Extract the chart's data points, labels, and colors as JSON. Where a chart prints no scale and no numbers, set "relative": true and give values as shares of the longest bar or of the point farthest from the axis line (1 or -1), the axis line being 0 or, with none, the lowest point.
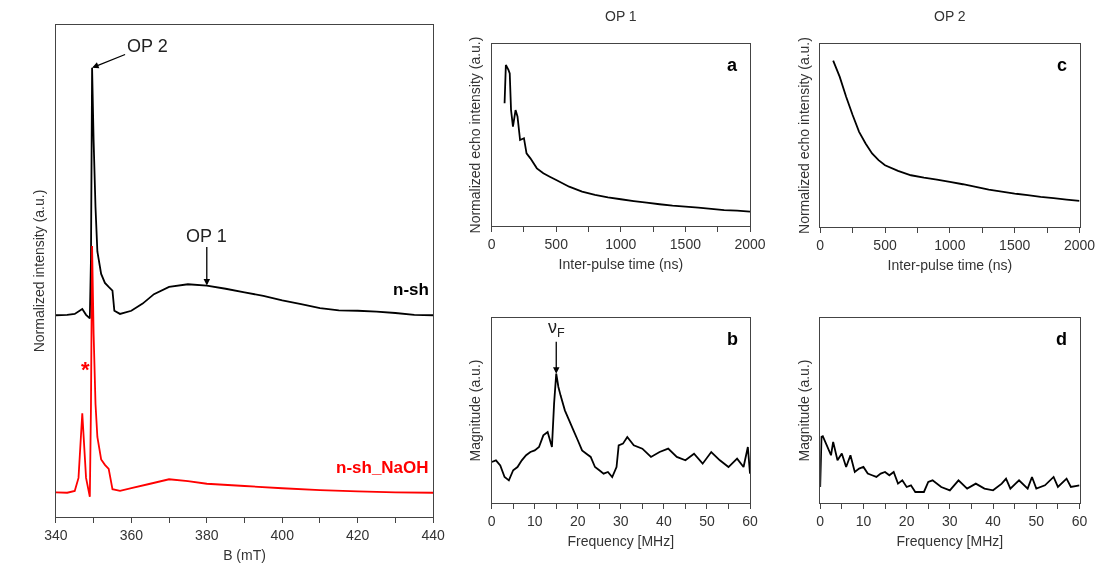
{
  "chart_data": [
    {
      "type": "line",
      "xlabel": "B (mT)",
      "ylabel": "Normalized intensity (a.u.)",
      "relative": true,
      "tick_labels": "x",
      "xlim": [
        340,
        440
      ],
      "xticks": [
        340,
        {
          "value": 350,
          "label": null
        },
        360,
        {
          "value": 370,
          "label": null
        },
        380,
        {
          "value": 390,
          "label": null
        },
        400,
        {
          "value": 410,
          "label": null
        },
        420,
        {
          "value": 430,
          "label": null
        },
        440
      ],
      "series": [
        {
          "name": "n-sh",
          "color": "#000000",
          "x": [
            340,
            343,
            345,
            347,
            348,
            349,
            349.3,
            349.6,
            350,
            350.5,
            351,
            352,
            353,
            354,
            355,
            355.5,
            357,
            360,
            363,
            366,
            370,
            375,
            380,
            385,
            390,
            395,
            400,
            405,
            410,
            415,
            420,
            425,
            430,
            435,
            440
          ],
          "values": [
            0.449,
            0.45,
            0.452,
            0.463,
            0.45,
            0.442,
            0.574,
            1,
            0.839,
            0.69,
            0.591,
            0.541,
            0.521,
            0.512,
            0.504,
            0.459,
            0.452,
            0.459,
            0.475,
            0.496,
            0.512,
            0.518,
            0.515,
            0.508,
            0.5,
            0.492,
            0.482,
            0.474,
            0.465,
            0.46,
            0.459,
            0.457,
            0.454,
            0.45,
            0.449
          ]
        },
        {
          "name": "n-sh_NaOH",
          "color": "#ff0000",
          "x": [
            340,
            343,
            345,
            346,
            347,
            348,
            349,
            349.3,
            349.6,
            350,
            350.5,
            351,
            352,
            353,
            354,
            355,
            357,
            360,
            365,
            370,
            375,
            380,
            390,
            400,
            410,
            420,
            430,
            440
          ],
          "values": [
            0.055,
            0.054,
            0.058,
            0.087,
            0.231,
            0.087,
            0.045,
            0.244,
            0.603,
            0.409,
            0.252,
            0.178,
            0.128,
            0.116,
            0.107,
            0.062,
            0.058,
            0.064,
            0.074,
            0.084,
            0.08,
            0.074,
            0.069,
            0.064,
            0.06,
            0.057,
            0.055,
            0.054
          ]
        }
      ],
      "annotations": [
        {
          "text": "OP 2",
          "x": 349.6,
          "y": 1
        },
        {
          "text": "OP 1",
          "x": 380,
          "y": 0.515
        },
        "*"
      ]
    },
    {
      "type": "line",
      "title": "OP 1",
      "xlabel": "Inter-pulse time (ns)",
      "ylabel": "Normalized echo intensity (a.u.)",
      "relative": true,
      "tick_labels": "x",
      "xlim": [
        0,
        2000
      ],
      "xticks": [
        0,
        {
          "value": 250,
          "label": null
        },
        500,
        {
          "value": 750,
          "label": null
        },
        1000,
        {
          "value": 1250,
          "label": null
        },
        1500,
        {
          "value": 1750,
          "label": null
        },
        2000
      ],
      "series": [
        {
          "color": "#000000",
          "x": [
            100,
            110,
            130,
            140,
            150,
            165,
            185,
            200,
            220,
            250,
            270,
            300,
            350,
            400,
            450,
            500,
            600,
            700,
            800,
            900,
            1000,
            1100,
            1200,
            1300,
            1400,
            1500,
            1600,
            1700,
            1800,
            1900,
            2000
          ],
          "values": [
            0.762,
            1,
            0.969,
            0.948,
            0.72,
            0.617,
            0.72,
            0.68,
            0.534,
            0.545,
            0.451,
            0.42,
            0.358,
            0.327,
            0.306,
            0.286,
            0.244,
            0.213,
            0.193,
            0.178,
            0.166,
            0.155,
            0.145,
            0.135,
            0.126,
            0.12,
            0.114,
            0.106,
            0.099,
            0.095,
            0.089
          ]
        }
      ],
      "annotations": [
        "a"
      ]
    },
    {
      "type": "line",
      "xlabel": "Frequency [MHz]",
      "ylabel": "Magnitude (a.u.)",
      "relative": true,
      "tick_labels": "x",
      "xlim": [
        0,
        60
      ],
      "xticks": [
        0,
        {
          "value": 5,
          "label": null
        },
        10,
        {
          "value": 15,
          "label": null
        },
        20,
        {
          "value": 25,
          "label": null
        },
        30,
        {
          "value": 35,
          "label": null
        },
        40,
        {
          "value": 45,
          "label": null
        },
        50,
        {
          "value": 55,
          "label": null
        },
        60
      ],
      "series": [
        {
          "color": "#000000",
          "x": [
            0,
            1,
            2,
            3,
            4,
            5,
            6,
            7,
            8,
            9,
            10,
            11,
            12,
            13,
            14,
            14.5,
            15,
            15.5,
            16,
            17,
            18,
            19,
            20,
            21,
            22,
            23,
            24,
            25,
            26,
            27,
            28,
            29,
            29.5,
            30.5,
            31.5,
            33,
            35,
            37,
            39,
            41,
            43,
            45,
            47,
            49,
            51,
            53,
            55,
            57,
            58.5,
            59.5,
            60
          ],
          "values": [
            0.317,
            0.33,
            0.291,
            0.201,
            0.175,
            0.253,
            0.278,
            0.33,
            0.369,
            0.394,
            0.407,
            0.433,
            0.523,
            0.549,
            0.433,
            0.768,
            1,
            0.897,
            0.832,
            0.716,
            0.639,
            0.562,
            0.485,
            0.407,
            0.381,
            0.356,
            0.278,
            0.253,
            0.227,
            0.24,
            0.201,
            0.278,
            0.446,
            0.459,
            0.51,
            0.446,
            0.42,
            0.356,
            0.394,
            0.42,
            0.356,
            0.33,
            0.381,
            0.304,
            0.394,
            0.33,
            0.278,
            0.343,
            0.278,
            0.433,
            0.227
          ]
        }
      ],
      "annotations": [
        {
          "text": "ν$_{F}$",
          "x": 15,
          "y": 1
        },
        "b"
      ]
    },
    {
      "type": "line",
      "title": "OP 2",
      "xlabel": "Inter-pulse time (ns)",
      "ylabel": "Normalized echo intensity (a.u.)",
      "relative": true,
      "tick_labels": "x",
      "xlim": [
        0,
        2000
      ],
      "xticks": [
        0,
        {
          "value": 250,
          "label": null
        },
        500,
        {
          "value": 750,
          "label": null
        },
        1000,
        {
          "value": 1250,
          "label": null
        },
        1500,
        {
          "value": 1750,
          "label": null
        },
        2000
      ],
      "series": [
        {
          "color": "#000000",
          "x": [
            100,
            150,
            200,
            250,
            300,
            350,
            400,
            450,
            500,
            600,
            700,
            800,
            900,
            1000,
            1100,
            1200,
            1300,
            1400,
            1500,
            1600,
            1700,
            1800,
            1900,
            2000
          ],
          "values": [
            1,
            0.904,
            0.783,
            0.673,
            0.572,
            0.502,
            0.442,
            0.402,
            0.371,
            0.337,
            0.311,
            0.297,
            0.285,
            0.271,
            0.257,
            0.241,
            0.225,
            0.213,
            0.201,
            0.191,
            0.181,
            0.173,
            0.165,
            0.157
          ]
        }
      ],
      "annotations": [
        "c"
      ]
    },
    {
      "type": "line",
      "xlabel": "Frequency [MHz]",
      "ylabel": "Magnitude (a.u.)",
      "relative": true,
      "tick_labels": "x",
      "xlim": [
        0,
        60
      ],
      "xticks": [
        0,
        {
          "value": 5,
          "label": null
        },
        10,
        {
          "value": 15,
          "label": null
        },
        20,
        {
          "value": 25,
          "label": null
        },
        30,
        {
          "value": 35,
          "label": null
        },
        40,
        {
          "value": 45,
          "label": null
        },
        50,
        {
          "value": 55,
          "label": null
        },
        60
      ],
      "series": [
        {
          "color": "#000000",
          "x": [
            0,
            0.3,
            0.6,
            1.5,
            2.5,
            3,
            4,
            5,
            6,
            7,
            8,
            9,
            10,
            11,
            12,
            13,
            14,
            15,
            16,
            17,
            18,
            19,
            20,
            21,
            22,
            24,
            25,
            26,
            28,
            30,
            32,
            34,
            36,
            38,
            40,
            42,
            43,
            44,
            46,
            48,
            49,
            50,
            52,
            54,
            55,
            57,
            58,
            60
          ],
          "values": [
            0.24,
            0.99,
            1,
            0.865,
            0.715,
            0.915,
            0.64,
            0.74,
            0.54,
            0.715,
            0.465,
            0.515,
            0.54,
            0.44,
            0.415,
            0.39,
            0.44,
            0.465,
            0.415,
            0.465,
            0.29,
            0.34,
            0.24,
            0.265,
            0.165,
            0.165,
            0.315,
            0.34,
            0.24,
            0.19,
            0.34,
            0.215,
            0.29,
            0.215,
            0.19,
            0.29,
            0.365,
            0.215,
            0.34,
            0.215,
            0.39,
            0.215,
            0.265,
            0.39,
            0.24,
            0.365,
            0.24,
            0.265
          ]
        }
      ],
      "annotations": [
        "d"
      ]
    }
  ]
}
